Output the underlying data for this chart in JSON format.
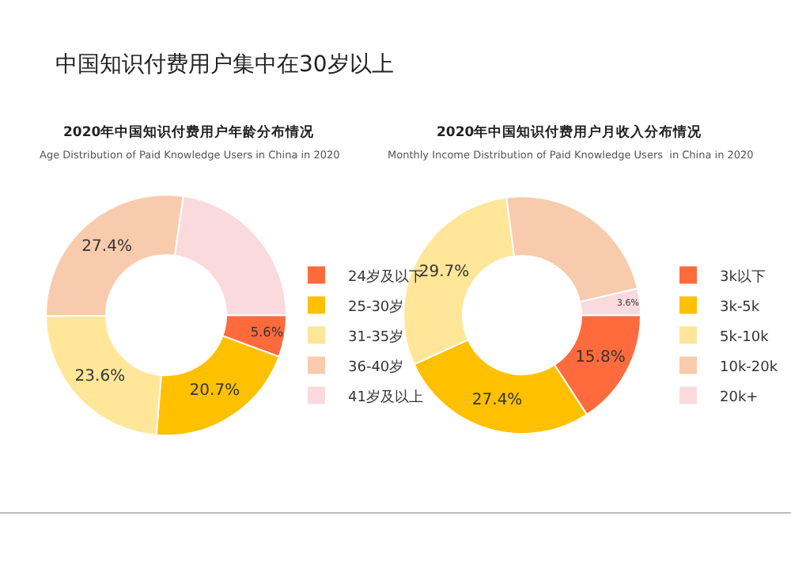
{
  "chart_data": [
    {
      "type": "donut",
      "title": "2020年中国知识付费用户年龄分布情况",
      "subtitle": "Age Distribution of Paid Knowledge Users in China in 2020",
      "annotations": [
        "中国知识付费用户集中在30岁以上"
      ],
      "categories": [
        "24岁及以下",
        "25-30岁",
        "31-35岁",
        "36-40岁",
        "41岁及以上"
      ],
      "values": [
        5.6,
        20.7,
        23.6,
        27.4,
        22.7
      ],
      "value_labels": [
        "5.6%",
        "20.7%",
        "23.6%",
        "27.4%",
        null
      ],
      "colors": [
        "#ff6b3d",
        "#ffc000",
        "#ffe699",
        "#f8cbad",
        "#fadadd"
      ],
      "legend": "right"
    },
    {
      "type": "donut",
      "title": "2020年中国知识付费用户月收入分布情况",
      "subtitle": "Monthly Income Distribution of Paid Knowledge Users  in China in 2020",
      "categories": [
        "3k以下",
        "3k-5k",
        "5k-10k",
        "10k-20k",
        "20k+"
      ],
      "values": [
        15.8,
        27.4,
        29.7,
        23.5,
        3.6
      ],
      "value_labels": [
        "15.8%",
        "27.4%",
        "29.7%",
        null,
        "3.6%"
      ],
      "colors": [
        "#ff6b3d",
        "#ffc000",
        "#ffe699",
        "#f8cbad",
        "#fadadd"
      ],
      "legend": "right"
    }
  ]
}
